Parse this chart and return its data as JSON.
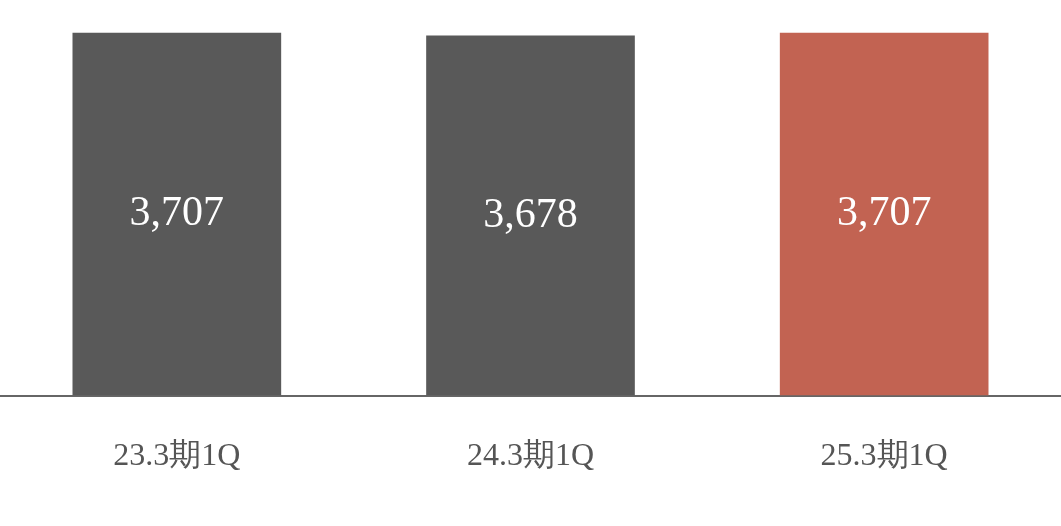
{
  "chart_data": {
    "type": "bar",
    "categories": [
      "23.3期1Q",
      "24.3期1Q",
      "25.3期1Q"
    ],
    "values": [
      3707,
      3678,
      3707
    ],
    "value_labels": [
      "3,707",
      "3,678",
      "3,707"
    ],
    "colors": [
      "#595959",
      "#595959",
      "#c26352"
    ],
    "grid": false,
    "legend": false
  }
}
